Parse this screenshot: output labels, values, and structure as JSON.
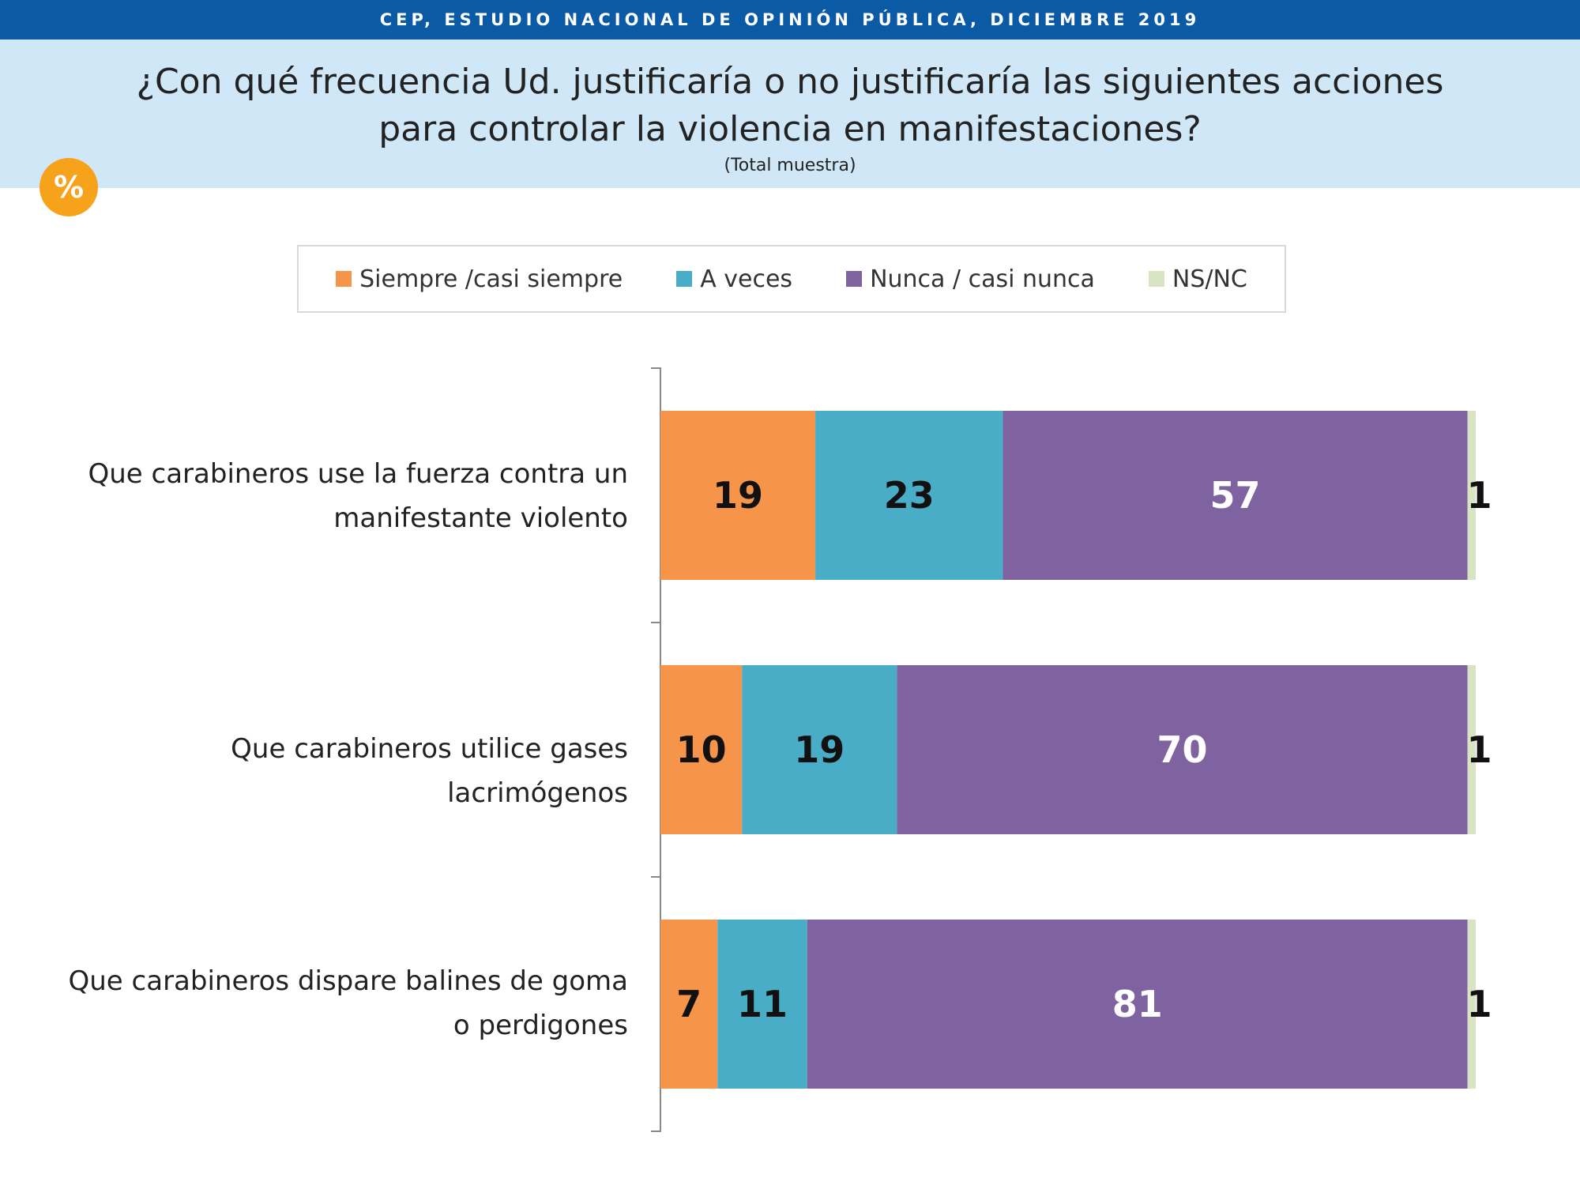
{
  "header": {
    "band_text": "CEP, ESTUDIO NACIONAL DE OPINIÓN PÚBLICA, DICIEMBRE 2019",
    "title": "¿Con qué frecuencia Ud. justificaría o no justificaría las siguientes acciones para controlar la violencia en manifestaciones?",
    "subtitle": "(Total muestra)",
    "badge": "%"
  },
  "chart_data": {
    "type": "bar",
    "orientation": "horizontal",
    "stacked": true,
    "categories": [
      "Que carabineros use la fuerza contra un manifestante violento",
      "Que carabineros utilice gases lacrimógenos",
      "Que carabineros dispare balines de goma o perdigones"
    ],
    "series": [
      {
        "name": "Siempre /casi siempre",
        "values": [
          19,
          10,
          7
        ],
        "color": "#f6954a",
        "label_color": "#111111"
      },
      {
        "name": "A veces",
        "values": [
          23,
          19,
          11
        ],
        "color": "#49adc8",
        "label_color": "#111111"
      },
      {
        "name": "Nunca / casi nunca",
        "values": [
          57,
          70,
          81
        ],
        "color": "#7f63a1",
        "label_color": "#ffffff"
      },
      {
        "name": "NS/NC",
        "values": [
          1,
          1,
          1
        ],
        "color": "#d9e4c3",
        "label_color": "#111111"
      }
    ],
    "xlim": [
      0,
      100
    ],
    "grid": false,
    "legend_position": "top"
  }
}
